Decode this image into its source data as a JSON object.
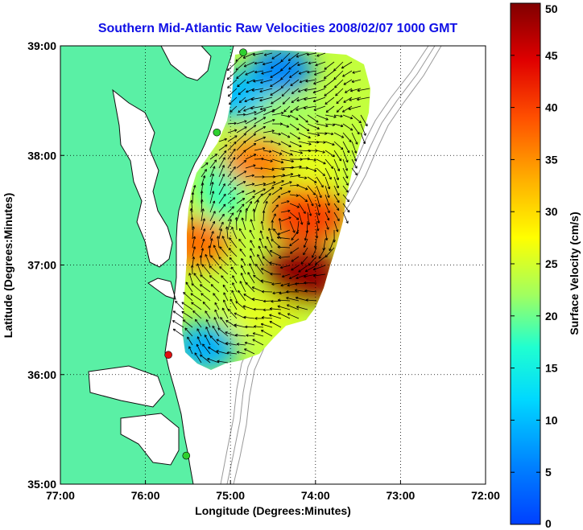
{
  "title": "Southern Mid-Atlantic Raw Velocities 2008/02/07 1000 GMT",
  "colors": {
    "title": "#1010e6",
    "land": "#5af0a5",
    "coast": "#101010",
    "isobath": "#9a9a9a",
    "station_active": "#2fd02f",
    "station_inactive": "#e01010"
  },
  "map": {
    "xlabel": "Longitude (Degrees:Minutes)",
    "ylabel": "Latitude (Degrees:Minutes)",
    "lon_range": [
      -77,
      -72
    ],
    "lat_range": [
      35,
      39
    ],
    "x_ticks": [
      {
        "value": -77,
        "label": "77:00"
      },
      {
        "value": -76,
        "label": "76:00"
      },
      {
        "value": -75,
        "label": "75:00"
      },
      {
        "value": -74,
        "label": "74:00"
      },
      {
        "value": -73,
        "label": "73:00"
      },
      {
        "value": -72,
        "label": "72:00"
      }
    ],
    "y_ticks": [
      {
        "value": 35,
        "label": "35:00"
      },
      {
        "value": 36,
        "label": "36:00"
      },
      {
        "value": 37,
        "label": "37:00"
      },
      {
        "value": 38,
        "label": "38:00"
      },
      {
        "value": 39,
        "label": "39:00"
      }
    ],
    "grid": true,
    "stations": [
      {
        "lon": -74.85,
        "lat": 38.94,
        "status": "active"
      },
      {
        "lon": -75.16,
        "lat": 38.21,
        "status": "active"
      },
      {
        "lon": -75.73,
        "lat": 36.18,
        "status": "inactive"
      },
      {
        "lon": -75.52,
        "lat": 35.26,
        "status": "active"
      }
    ]
  },
  "colorbar": {
    "label": "Surface Velocity (cm/s)",
    "min": 0,
    "max": 50,
    "ticks": [
      "0",
      "5",
      "10",
      "15",
      "20",
      "25",
      "30",
      "35",
      "40",
      "45",
      "50"
    ]
  },
  "velocity_field": {
    "units": "cm/s",
    "lon_extent": [
      -75.55,
      -73.3
    ],
    "lat_extent": [
      36.1,
      38.95
    ],
    "features": [
      {
        "name": "northern low-speed area",
        "lon": -74.4,
        "lat": 38.78,
        "speed": 6
      },
      {
        "name": "northwest low-speed area",
        "lon": -74.95,
        "lat": 38.55,
        "speed": 10
      },
      {
        "name": "central-north maximum",
        "lon": -74.7,
        "lat": 37.95,
        "speed": 36
      },
      {
        "name": "southeast maximum",
        "lon": -74.15,
        "lat": 36.9,
        "speed": 49
      },
      {
        "name": "eastern maximum",
        "lon": -74.1,
        "lat": 37.45,
        "speed": 40
      },
      {
        "name": "nearshore maximum",
        "lon": -75.4,
        "lat": 37.2,
        "speed": 37
      },
      {
        "name": "southern low-speed area",
        "lon": -75.3,
        "lat": 36.25,
        "speed": 9
      }
    ]
  }
}
